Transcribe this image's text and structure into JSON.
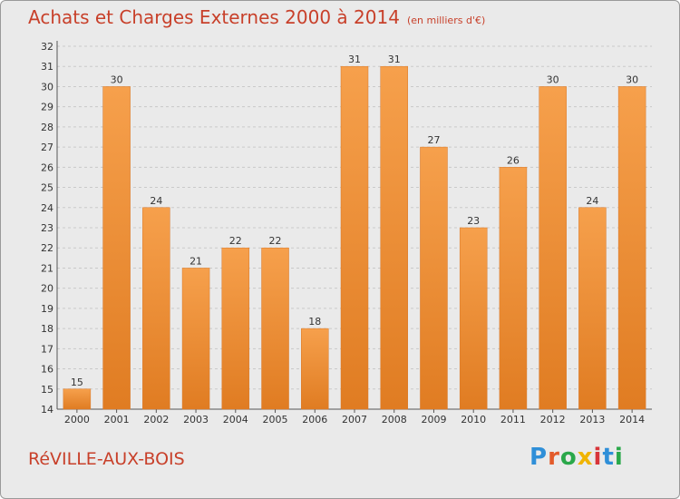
{
  "header": {
    "title": "Achats et Charges Externes 2000 à 2014",
    "unit": "(en milliers d'€)"
  },
  "footer": {
    "city": "RéVILLE-AUX-BOIS",
    "logo_text": "Proxiti"
  },
  "colors": {
    "title": "#c8402a",
    "bar_light": "#f6a04c",
    "bar_dark": "#e07c22",
    "background": "#eaeaea"
  },
  "chart_data": {
    "type": "bar",
    "title": "Achats et Charges Externes 2000 à 2014",
    "subtitle": "(en milliers d'€)",
    "categories": [
      "2000",
      "2001",
      "2002",
      "2003",
      "2004",
      "2005",
      "2006",
      "2007",
      "2008",
      "2009",
      "2010",
      "2011",
      "2012",
      "2013",
      "2014"
    ],
    "values": [
      15,
      30,
      24,
      21,
      22,
      22,
      18,
      31,
      31,
      27,
      23,
      26,
      30,
      24,
      30
    ],
    "ylim": [
      14,
      32
    ],
    "yticks": [
      14,
      15,
      16,
      17,
      18,
      19,
      20,
      21,
      22,
      23,
      24,
      25,
      26,
      27,
      28,
      29,
      30,
      31,
      32
    ],
    "grid": true,
    "data_labels": true
  }
}
